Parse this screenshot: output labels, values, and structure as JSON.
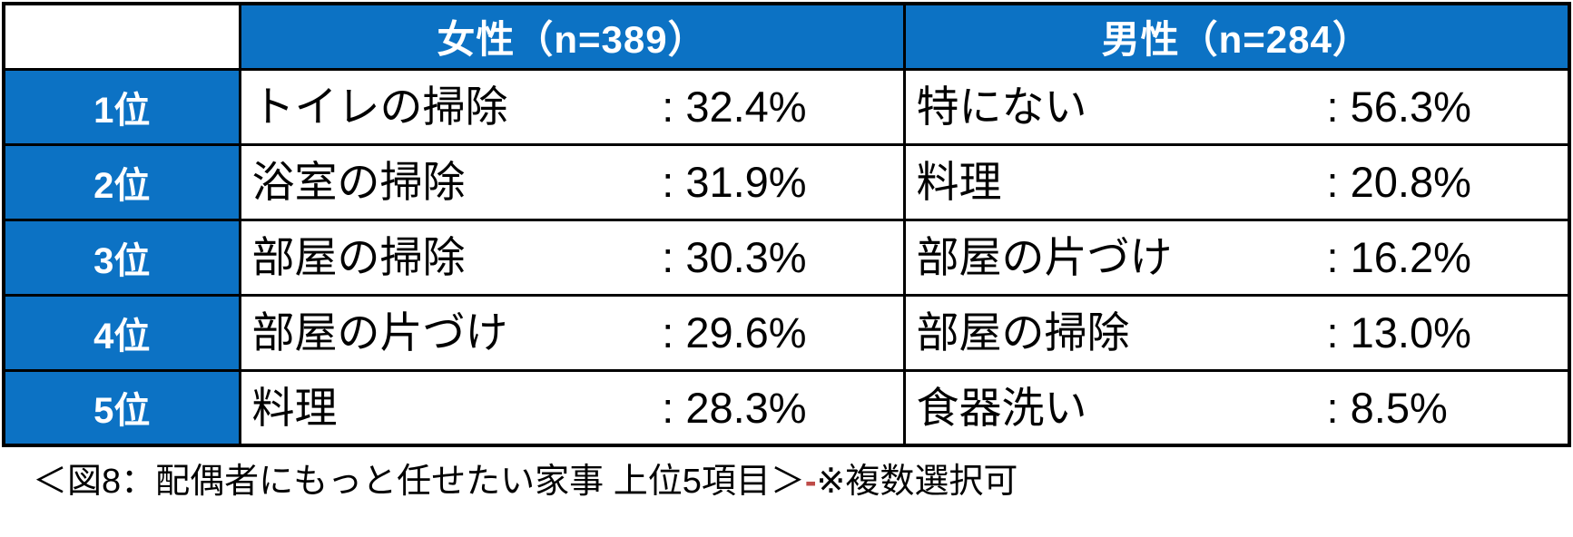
{
  "table": {
    "corner_label": "",
    "columns": [
      {
        "key": "female",
        "label": "女性（n=389）"
      },
      {
        "key": "male",
        "label": "男性（n=284）"
      }
    ],
    "rows": [
      {
        "rank": "1位",
        "female": {
          "item": "トイレの掃除",
          "value": ": 32.4%"
        },
        "male": {
          "item": "特にない",
          "value": ": 56.3%"
        }
      },
      {
        "rank": "2位",
        "female": {
          "item": "浴室の掃除",
          "value": ": 31.9%"
        },
        "male": {
          "item": "料理",
          "value": ": 20.8%"
        }
      },
      {
        "rank": "3位",
        "female": {
          "item": "部屋の掃除",
          "value": ": 30.3%"
        },
        "male": {
          "item": "部屋の片づけ",
          "value": ": 16.2%"
        }
      },
      {
        "rank": "4位",
        "female": {
          "item": "部屋の片づけ",
          "value": ": 29.6%"
        },
        "male": {
          "item": "部屋の掃除",
          "value": ": 13.0%"
        }
      },
      {
        "rank": "5位",
        "female": {
          "item": "料理",
          "value": ": 28.3%"
        },
        "male": {
          "item": "食器洗い",
          "value": ": 8.5%"
        }
      }
    ]
  },
  "caption": {
    "main": "＜図8：配偶者にもっと任せたい家事 上位5項目＞",
    "dash": "-",
    "note": "※複数選択可"
  },
  "colors": {
    "header_blue": "#0c72c4",
    "border_black": "#000000",
    "caption_dash_red": "#be4b48",
    "header_text": "#ffffff",
    "body_text": "#000000"
  },
  "chart_data": {
    "type": "table",
    "title": "図8：配偶者にもっと任せたい家事 上位5項目",
    "note": "※複数選択可",
    "unit": "percent",
    "groups": [
      {
        "name": "女性",
        "n": 389,
        "ranking": [
          {
            "rank": 1,
            "item": "トイレの掃除",
            "percent": 32.4
          },
          {
            "rank": 2,
            "item": "浴室の掃除",
            "percent": 31.9
          },
          {
            "rank": 3,
            "item": "部屋の掃除",
            "percent": 30.3
          },
          {
            "rank": 4,
            "item": "部屋の片づけ",
            "percent": 29.6
          },
          {
            "rank": 5,
            "item": "料理",
            "percent": 28.3
          }
        ]
      },
      {
        "name": "男性",
        "n": 284,
        "ranking": [
          {
            "rank": 1,
            "item": "特にない",
            "percent": 56.3
          },
          {
            "rank": 2,
            "item": "料理",
            "percent": 20.8
          },
          {
            "rank": 3,
            "item": "部屋の片づけ",
            "percent": 16.2
          },
          {
            "rank": 4,
            "item": "部屋の掃除",
            "percent": 13.0
          },
          {
            "rank": 5,
            "item": "食器洗い",
            "percent": 8.5
          }
        ]
      }
    ]
  }
}
